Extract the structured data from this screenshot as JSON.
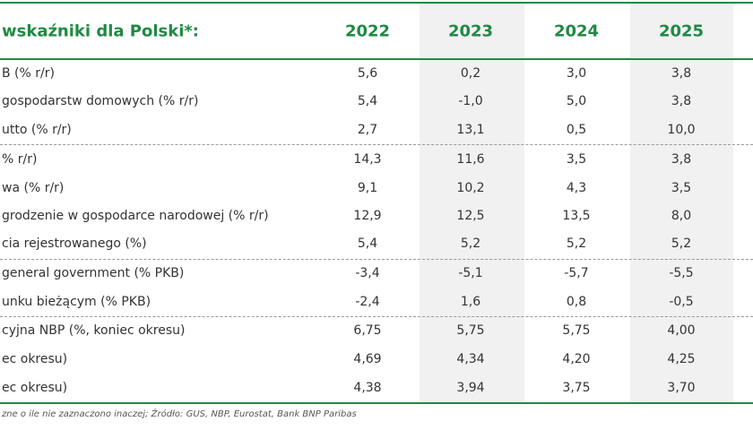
{
  "table": {
    "header": [
      "wskaźniki dla Polski*:",
      "2022",
      "2023",
      "2024",
      "2025"
    ],
    "rows": [
      [
        "B  (% r/r)",
        "5,6",
        "0,2",
        "3,0",
        "3,8"
      ],
      [
        "gospodarstw domowych (% r/r)",
        "5,4",
        "-1,0",
        "5,0",
        "3,8"
      ],
      [
        "utto (% r/r)",
        "2,7",
        "13,1",
        "0,5",
        "10,0"
      ],
      [
        "% r/r)",
        "14,3",
        "11,6",
        "3,5",
        "3,8"
      ],
      [
        "wa (% r/r)",
        "9,1",
        "10,2",
        "4,3",
        "3,5"
      ],
      [
        "grodzenie w gospodarce narodowej (% r/r)",
        "12,9",
        "12,5",
        "13,5",
        "8,0"
      ],
      [
        "cia rejestrowanego (%)",
        "5,4",
        "5,2",
        "5,2",
        "5,2"
      ],
      [
        "general government (% PKB)",
        "-3,4",
        "-5,1",
        "-5,7",
        "-5,5"
      ],
      [
        "unku bieżącym (% PKB)",
        "-2,4",
        "1,6",
        "0,8",
        "-0,5"
      ],
      [
        "cyjna NBP (%, koniec okresu)",
        "6,75",
        "5,75",
        "5,75",
        "4,00"
      ],
      [
        "ec okresu)",
        "4,69",
        "4,34",
        "4,20",
        "4,25"
      ],
      [
        "ec okresu)",
        "4,38",
        "3,94",
        "3,75",
        "3,70"
      ]
    ]
  },
  "footer": "zne o ile nie zaznaczono inaczej; Źródło: GUS, NBP, Eurostat, Bank BNP Paribas"
}
